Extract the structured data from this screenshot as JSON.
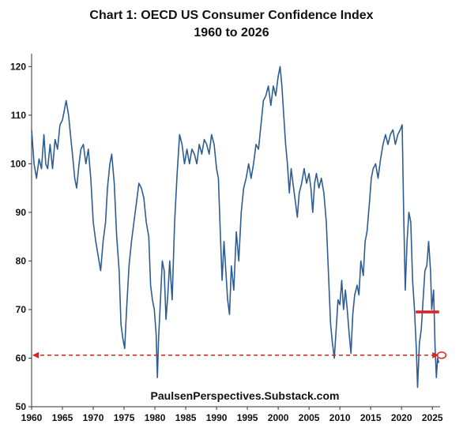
{
  "chart_data": {
    "type": "line",
    "title": "Chart 1: OECD US Consumer Confidence Index",
    "subtitle": "1960 to 2026",
    "xlabel": "",
    "ylabel": "",
    "xlim": [
      1960,
      2026
    ],
    "ylim": [
      50,
      122
    ],
    "x_ticks": [
      1960,
      1965,
      1970,
      1975,
      1980,
      1985,
      1990,
      1995,
      2000,
      2005,
      2010,
      2015,
      2020,
      2025
    ],
    "y_ticks": [
      50,
      60,
      70,
      80,
      90,
      100,
      110,
      120
    ],
    "grid": false,
    "legend": "none",
    "watermark": "PaulsenPerspectives.Substack.com",
    "series": [
      {
        "color": "#2e5d94",
        "points": [
          [
            1960.0,
            107
          ],
          [
            1960.4,
            100
          ],
          [
            1960.8,
            97
          ],
          [
            1961.2,
            101
          ],
          [
            1961.6,
            99
          ],
          [
            1962.0,
            106
          ],
          [
            1962.3,
            100
          ],
          [
            1962.6,
            99
          ],
          [
            1963.0,
            104
          ],
          [
            1963.4,
            99
          ],
          [
            1963.8,
            105
          ],
          [
            1964.2,
            103
          ],
          [
            1964.6,
            108
          ],
          [
            1965.0,
            109
          ],
          [
            1965.3,
            111
          ],
          [
            1965.6,
            113
          ],
          [
            1966.0,
            110
          ],
          [
            1966.3,
            106
          ],
          [
            1966.7,
            101
          ],
          [
            1967.0,
            97
          ],
          [
            1967.3,
            95
          ],
          [
            1967.7,
            100
          ],
          [
            1968.0,
            103
          ],
          [
            1968.4,
            104
          ],
          [
            1968.8,
            100
          ],
          [
            1969.2,
            103
          ],
          [
            1969.6,
            97
          ],
          [
            1970.0,
            88
          ],
          [
            1970.4,
            84
          ],
          [
            1970.8,
            81
          ],
          [
            1971.2,
            78
          ],
          [
            1971.6,
            84
          ],
          [
            1972.0,
            88
          ],
          [
            1972.3,
            95
          ],
          [
            1972.7,
            100
          ],
          [
            1973.0,
            102
          ],
          [
            1973.4,
            96
          ],
          [
            1973.8,
            85
          ],
          [
            1974.2,
            78
          ],
          [
            1974.5,
            67
          ],
          [
            1974.8,
            64
          ],
          [
            1975.1,
            62
          ],
          [
            1975.4,
            70
          ],
          [
            1975.8,
            79
          ],
          [
            1976.2,
            84
          ],
          [
            1976.6,
            88
          ],
          [
            1977.0,
            92
          ],
          [
            1977.4,
            96
          ],
          [
            1977.8,
            95
          ],
          [
            1978.2,
            93
          ],
          [
            1978.6,
            88
          ],
          [
            1979.0,
            85
          ],
          [
            1979.3,
            75
          ],
          [
            1979.6,
            72
          ],
          [
            1979.9,
            70
          ],
          [
            1980.2,
            65
          ],
          [
            1980.4,
            56
          ],
          [
            1980.6,
            64
          ],
          [
            1980.9,
            72
          ],
          [
            1981.2,
            80
          ],
          [
            1981.5,
            78
          ],
          [
            1981.8,
            68
          ],
          [
            1982.1,
            73
          ],
          [
            1982.4,
            80
          ],
          [
            1982.8,
            72
          ],
          [
            1983.2,
            88
          ],
          [
            1983.6,
            98
          ],
          [
            1984.0,
            106
          ],
          [
            1984.4,
            104
          ],
          [
            1984.8,
            100
          ],
          [
            1985.2,
            103
          ],
          [
            1985.6,
            100
          ],
          [
            1986.0,
            103
          ],
          [
            1986.4,
            102
          ],
          [
            1986.8,
            100
          ],
          [
            1987.2,
            104
          ],
          [
            1987.6,
            102
          ],
          [
            1988.0,
            105
          ],
          [
            1988.4,
            104
          ],
          [
            1988.8,
            102
          ],
          [
            1989.2,
            106
          ],
          [
            1989.6,
            104
          ],
          [
            1990.0,
            99
          ],
          [
            1990.3,
            97
          ],
          [
            1990.6,
            86
          ],
          [
            1990.9,
            76
          ],
          [
            1991.2,
            84
          ],
          [
            1991.5,
            78
          ],
          [
            1991.8,
            72
          ],
          [
            1992.1,
            69
          ],
          [
            1992.4,
            79
          ],
          [
            1992.8,
            74
          ],
          [
            1993.2,
            86
          ],
          [
            1993.6,
            80
          ],
          [
            1994.0,
            90
          ],
          [
            1994.4,
            95
          ],
          [
            1994.8,
            97
          ],
          [
            1995.2,
            100
          ],
          [
            1995.6,
            97
          ],
          [
            1996.0,
            100
          ],
          [
            1996.4,
            104
          ],
          [
            1996.8,
            103
          ],
          [
            1997.2,
            108
          ],
          [
            1997.6,
            113
          ],
          [
            1998.0,
            114
          ],
          [
            1998.4,
            116
          ],
          [
            1998.8,
            112
          ],
          [
            1999.2,
            116
          ],
          [
            1999.6,
            114
          ],
          [
            2000.0,
            118
          ],
          [
            2000.3,
            120
          ],
          [
            2000.6,
            116
          ],
          [
            2000.9,
            110
          ],
          [
            2001.2,
            104
          ],
          [
            2001.5,
            100
          ],
          [
            2001.8,
            94
          ],
          [
            2002.1,
            99
          ],
          [
            2002.4,
            96
          ],
          [
            2002.8,
            92
          ],
          [
            2003.1,
            89
          ],
          [
            2003.4,
            94
          ],
          [
            2003.8,
            96
          ],
          [
            2004.2,
            99
          ],
          [
            2004.6,
            96
          ],
          [
            2005.0,
            98
          ],
          [
            2005.3,
            95
          ],
          [
            2005.6,
            90
          ],
          [
            2005.9,
            96
          ],
          [
            2006.2,
            98
          ],
          [
            2006.6,
            95
          ],
          [
            2007.0,
            97
          ],
          [
            2007.4,
            94
          ],
          [
            2007.8,
            88
          ],
          [
            2008.2,
            76
          ],
          [
            2008.5,
            67
          ],
          [
            2008.8,
            63
          ],
          [
            2009.1,
            60
          ],
          [
            2009.4,
            66
          ],
          [
            2009.7,
            72
          ],
          [
            2010.0,
            71
          ],
          [
            2010.3,
            76
          ],
          [
            2010.6,
            70
          ],
          [
            2010.9,
            74
          ],
          [
            2011.2,
            70
          ],
          [
            2011.5,
            65
          ],
          [
            2011.8,
            61
          ],
          [
            2012.1,
            69
          ],
          [
            2012.4,
            73
          ],
          [
            2012.8,
            75
          ],
          [
            2013.1,
            73
          ],
          [
            2013.4,
            80
          ],
          [
            2013.8,
            77
          ],
          [
            2014.1,
            84
          ],
          [
            2014.4,
            86
          ],
          [
            2014.8,
            92
          ],
          [
            2015.1,
            97
          ],
          [
            2015.4,
            99
          ],
          [
            2015.8,
            100
          ],
          [
            2016.2,
            97
          ],
          [
            2016.6,
            101
          ],
          [
            2017.0,
            104
          ],
          [
            2017.4,
            106
          ],
          [
            2017.8,
            104
          ],
          [
            2018.2,
            106
          ],
          [
            2018.6,
            107
          ],
          [
            2019.0,
            104
          ],
          [
            2019.4,
            106
          ],
          [
            2019.8,
            107
          ],
          [
            2020.1,
            108
          ],
          [
            2020.35,
            90
          ],
          [
            2020.6,
            74
          ],
          [
            2020.9,
            84
          ],
          [
            2021.2,
            90
          ],
          [
            2021.5,
            88
          ],
          [
            2021.8,
            76
          ],
          [
            2022.1,
            70
          ],
          [
            2022.4,
            62
          ],
          [
            2022.6,
            54
          ],
          [
            2022.9,
            63
          ],
          [
            2023.2,
            66
          ],
          [
            2023.5,
            72
          ],
          [
            2023.8,
            78
          ],
          [
            2024.1,
            79
          ],
          [
            2024.4,
            84
          ],
          [
            2024.7,
            78
          ],
          [
            2024.9,
            70
          ],
          [
            2025.2,
            74
          ],
          [
            2025.45,
            62
          ],
          [
            2025.65,
            56
          ],
          [
            2025.85,
            60
          ],
          [
            2026.05,
            59
          ]
        ]
      }
    ],
    "annotations": {
      "red_bar": {
        "y": 69.5,
        "x_start": 2022.3,
        "x_end": 2026.1,
        "color": "#e02020"
      },
      "reference_line": {
        "y": 60.6,
        "x_start": 1960,
        "x_end": 2025.9,
        "style": "dashed",
        "arrowheads": "both",
        "color": "#e02020"
      },
      "circle_marker": {
        "x": 2026.5,
        "y": 60.6,
        "color": "#e02020"
      }
    }
  }
}
